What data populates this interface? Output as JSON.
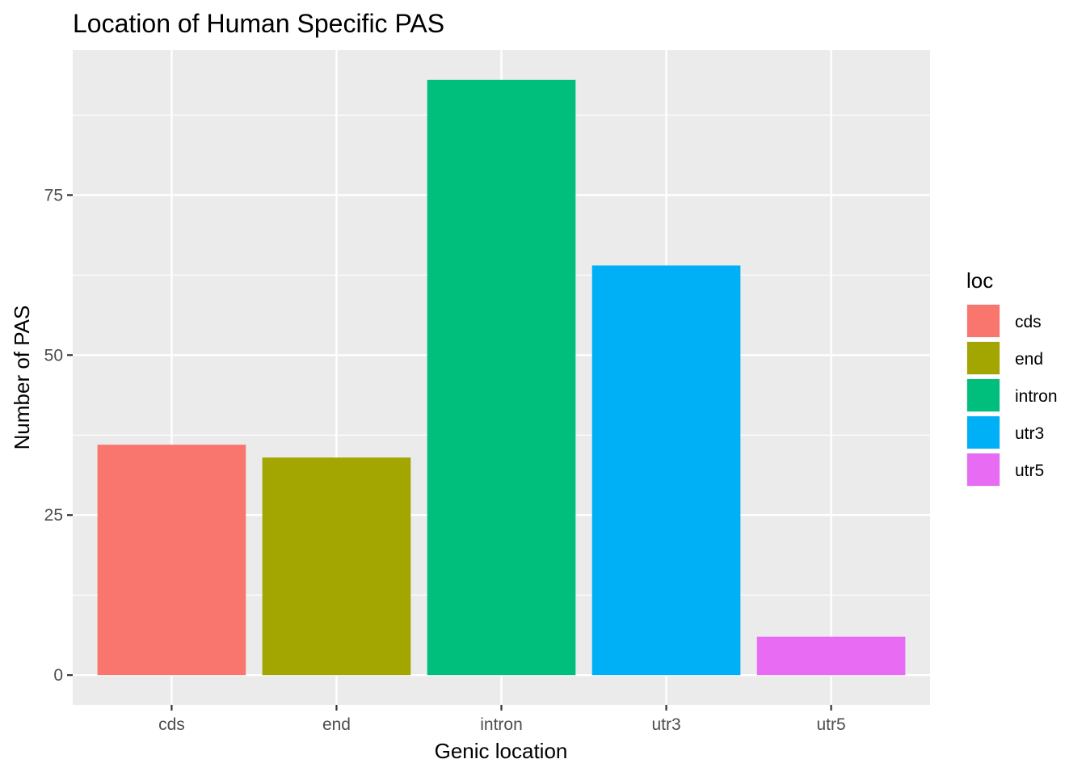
{
  "chart_data": {
    "type": "bar",
    "title": "Location of Human Specific PAS",
    "xlabel": "Genic location",
    "ylabel": "Number of PAS",
    "categories": [
      "cds",
      "end",
      "intron",
      "utr3",
      "utr5"
    ],
    "values": [
      36,
      34,
      93,
      64,
      6
    ],
    "colors": [
      "#F8766D",
      "#A3A500",
      "#00BF7D",
      "#00B0F6",
      "#E76BF3"
    ],
    "ylim": [
      -4.65,
      97.65
    ],
    "yticks": [
      0,
      25,
      50,
      75
    ],
    "grid": true,
    "background": "#EBEBEB",
    "legend": {
      "title": "loc",
      "position": "right",
      "items": [
        "cds",
        "end",
        "intron",
        "utr3",
        "utr5"
      ]
    }
  }
}
